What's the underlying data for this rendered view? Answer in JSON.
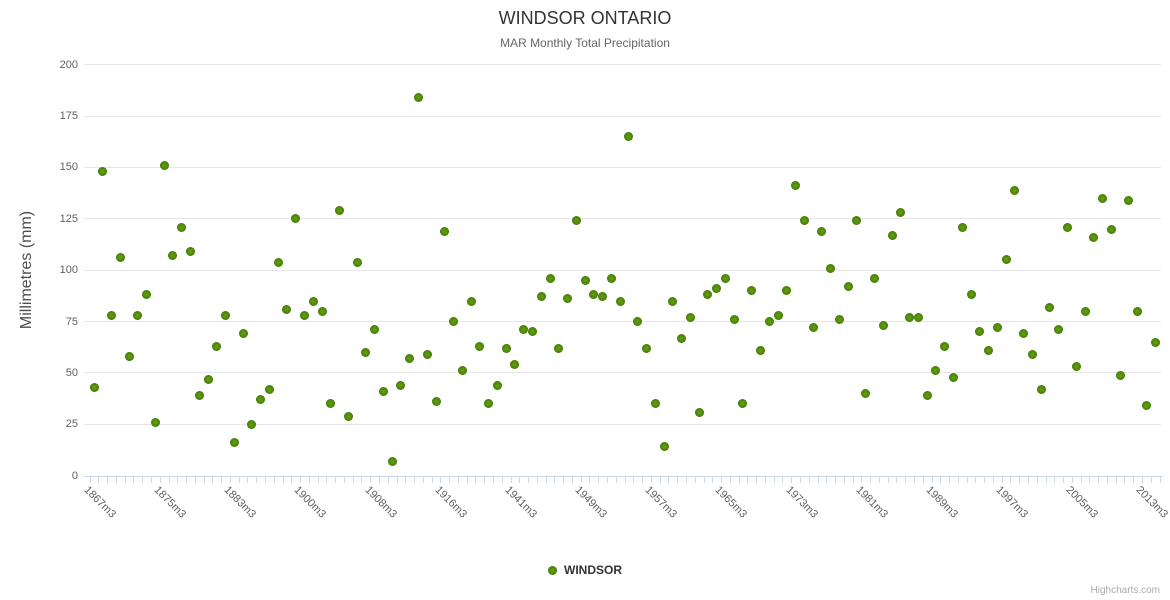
{
  "chart_data": {
    "type": "scatter",
    "title": "WINDSOR ONTARIO",
    "subtitle": "MAR Monthly Total Precipitation",
    "ylabel": "Millimetres (mm)",
    "ylim": [
      0,
      200
    ],
    "ytick_interval": 25,
    "yticks": [
      0,
      25,
      50,
      75,
      100,
      125,
      150,
      175,
      200
    ],
    "grid": "horizontal",
    "x_visible_labels": [
      "1867m3",
      "1875m3",
      "1883m3",
      "1900m3",
      "1908m3",
      "1916m3",
      "1941m3",
      "1949m3",
      "1957m3",
      "1965m3",
      "1973m3",
      "1981m3",
      "1989m3",
      "1997m3",
      "2005m3",
      "2013m3"
    ],
    "x_label_step": 8,
    "n_points": 122,
    "legend_position": "bottom-center",
    "series": [
      {
        "name": "WINDSOR",
        "color": "#62a00e",
        "values": [
          43,
          148,
          78,
          106,
          58,
          78,
          88,
          26,
          151,
          107,
          121,
          109,
          39,
          47,
          63,
          78,
          16,
          69,
          25,
          37,
          42,
          104,
          81,
          125,
          78,
          85,
          80,
          35,
          129,
          29,
          104,
          60,
          71,
          41,
          7,
          44,
          57,
          184,
          59,
          36,
          119,
          75,
          51,
          85,
          63,
          35,
          44,
          62,
          54,
          71,
          70,
          87,
          96,
          62,
          86,
          124,
          95,
          88,
          87,
          96,
          85,
          165,
          75,
          62,
          35,
          14,
          85,
          67,
          77,
          31,
          88,
          91,
          96,
          76,
          35,
          90,
          61,
          75,
          78,
          90,
          141,
          124,
          72,
          119,
          101,
          76,
          92,
          124,
          40,
          96,
          73,
          117,
          128,
          77,
          77,
          39,
          51,
          63,
          48,
          121,
          88,
          70,
          61,
          72,
          105,
          139,
          69,
          59,
          42,
          82,
          71,
          121,
          53,
          80,
          116,
          135,
          120,
          49,
          134,
          80,
          34,
          65
        ]
      }
    ],
    "credit": "Highcharts.com",
    "colors": {
      "title": "#333333",
      "subtitle": "#666666",
      "axis_labels": "#606060",
      "gridline": "#e6e6e6",
      "axis_line": "#ccd6eb",
      "marker": "#62a00e",
      "credit": "#aaaaaa"
    }
  }
}
